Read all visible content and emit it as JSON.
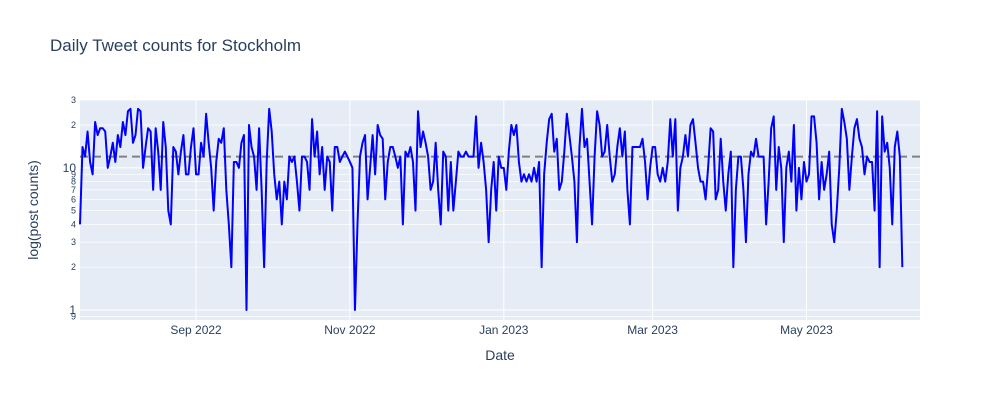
{
  "chart_data": {
    "type": "line",
    "title": "Daily Tweet counts for Stockholm",
    "xlabel": "Date",
    "ylabel": "log(post counts)",
    "y_scale": "log",
    "x_range": [
      "2022-07-17",
      "2023-06-15"
    ],
    "y_range": [
      0.85,
      30
    ],
    "x_ticks": [
      {
        "date": "2022-09-01",
        "label": "Sep 2022"
      },
      {
        "date": "2022-11-01",
        "label": "Nov 2022"
      },
      {
        "date": "2023-01-01",
        "label": "Jan 2023"
      },
      {
        "date": "2023-03-01",
        "label": "Mar 2023"
      },
      {
        "date": "2023-05-01",
        "label": "May 2023"
      }
    ],
    "y_major_ticks": [
      {
        "value": 1,
        "label": "1"
      },
      {
        "value": 10,
        "label": "10"
      }
    ],
    "y_minor_ticks": [
      {
        "value": 0.9,
        "label": "9"
      },
      {
        "value": 2,
        "label": "2"
      },
      {
        "value": 3,
        "label": "3"
      },
      {
        "value": 4,
        "label": "4"
      },
      {
        "value": 5,
        "label": "5"
      },
      {
        "value": 6,
        "label": "6"
      },
      {
        "value": 7,
        "label": "7"
      },
      {
        "value": 8,
        "label": "8"
      },
      {
        "value": 9,
        "label": "9"
      },
      {
        "value": 20,
        "label": "2"
      },
      {
        "value": 30,
        "label": "3"
      }
    ],
    "grid": true,
    "reference_line": {
      "value": 12,
      "style": "dashed",
      "color": "#808080"
    },
    "series": [
      {
        "color": "#0000ff",
        "start_date": "2022-07-17",
        "values": [
          4,
          14,
          12,
          18,
          11,
          9,
          21,
          17,
          19,
          19,
          18,
          10,
          12,
          15,
          11,
          17,
          14,
          21,
          17,
          25,
          26,
          15,
          17,
          26,
          25,
          10,
          14,
          19,
          18,
          7,
          19,
          13,
          7,
          21,
          14,
          5,
          4,
          14,
          13,
          9,
          13,
          17,
          9,
          9,
          14,
          19,
          9,
          9,
          15,
          12,
          24,
          15,
          10,
          5,
          11,
          16,
          15,
          19,
          7,
          4,
          2,
          11,
          11,
          10,
          15,
          17,
          1,
          20,
          14,
          12,
          7,
          19,
          7,
          2,
          11,
          26,
          18,
          9,
          6,
          8,
          4,
          8,
          6,
          12,
          11,
          12,
          8,
          5,
          12,
          12,
          11,
          7,
          22,
          12,
          18,
          9,
          14,
          7,
          12,
          11,
          5,
          14,
          14,
          11,
          12,
          13,
          12,
          11,
          10,
          1,
          4,
          12,
          15,
          17,
          6,
          10,
          17,
          9,
          20,
          17,
          16,
          6,
          11,
          14,
          14,
          12,
          10,
          12,
          4,
          13,
          12,
          14,
          11,
          5,
          25,
          14,
          18,
          15,
          12,
          7,
          8,
          15,
          7,
          4,
          13,
          12,
          5,
          11,
          5,
          8,
          13,
          12,
          12,
          13,
          12,
          12,
          12,
          23,
          10,
          15,
          11,
          7,
          3,
          7,
          11,
          5,
          12,
          10,
          10,
          7,
          13,
          20,
          17,
          20,
          11,
          8,
          9,
          8,
          9,
          8,
          10,
          8,
          11,
          2,
          9,
          15,
          22,
          24,
          13,
          16,
          7,
          8,
          13,
          24,
          17,
          12,
          8,
          3,
          14,
          26,
          14,
          16,
          8,
          4,
          12,
          25,
          20,
          12,
          13,
          20,
          12,
          8,
          9,
          14,
          19,
          12,
          18,
          7,
          4,
          14,
          14,
          14,
          14,
          16,
          11,
          6,
          10,
          14,
          14,
          9,
          8,
          10,
          8,
          11,
          22,
          12,
          22,
          5,
          10,
          12,
          17,
          12,
          20,
          22,
          15,
          10,
          8,
          8,
          6,
          10,
          19,
          18,
          6,
          7,
          16,
          8,
          5,
          9,
          13,
          2,
          7,
          12,
          12,
          7,
          3,
          9,
          13,
          12,
          16,
          12,
          12,
          12,
          4,
          8,
          19,
          23,
          7,
          14,
          10,
          3,
          10,
          13,
          8,
          20,
          5,
          10,
          6,
          11,
          8,
          9,
          23,
          23,
          15,
          6,
          11,
          7,
          9,
          13,
          4,
          3,
          5,
          10,
          26,
          21,
          16,
          7,
          12,
          19,
          22,
          16,
          14,
          9,
          12,
          11,
          11,
          5,
          25,
          2,
          23,
          13,
          15,
          10,
          4,
          14,
          18,
          12,
          2
        ]
      }
    ]
  }
}
